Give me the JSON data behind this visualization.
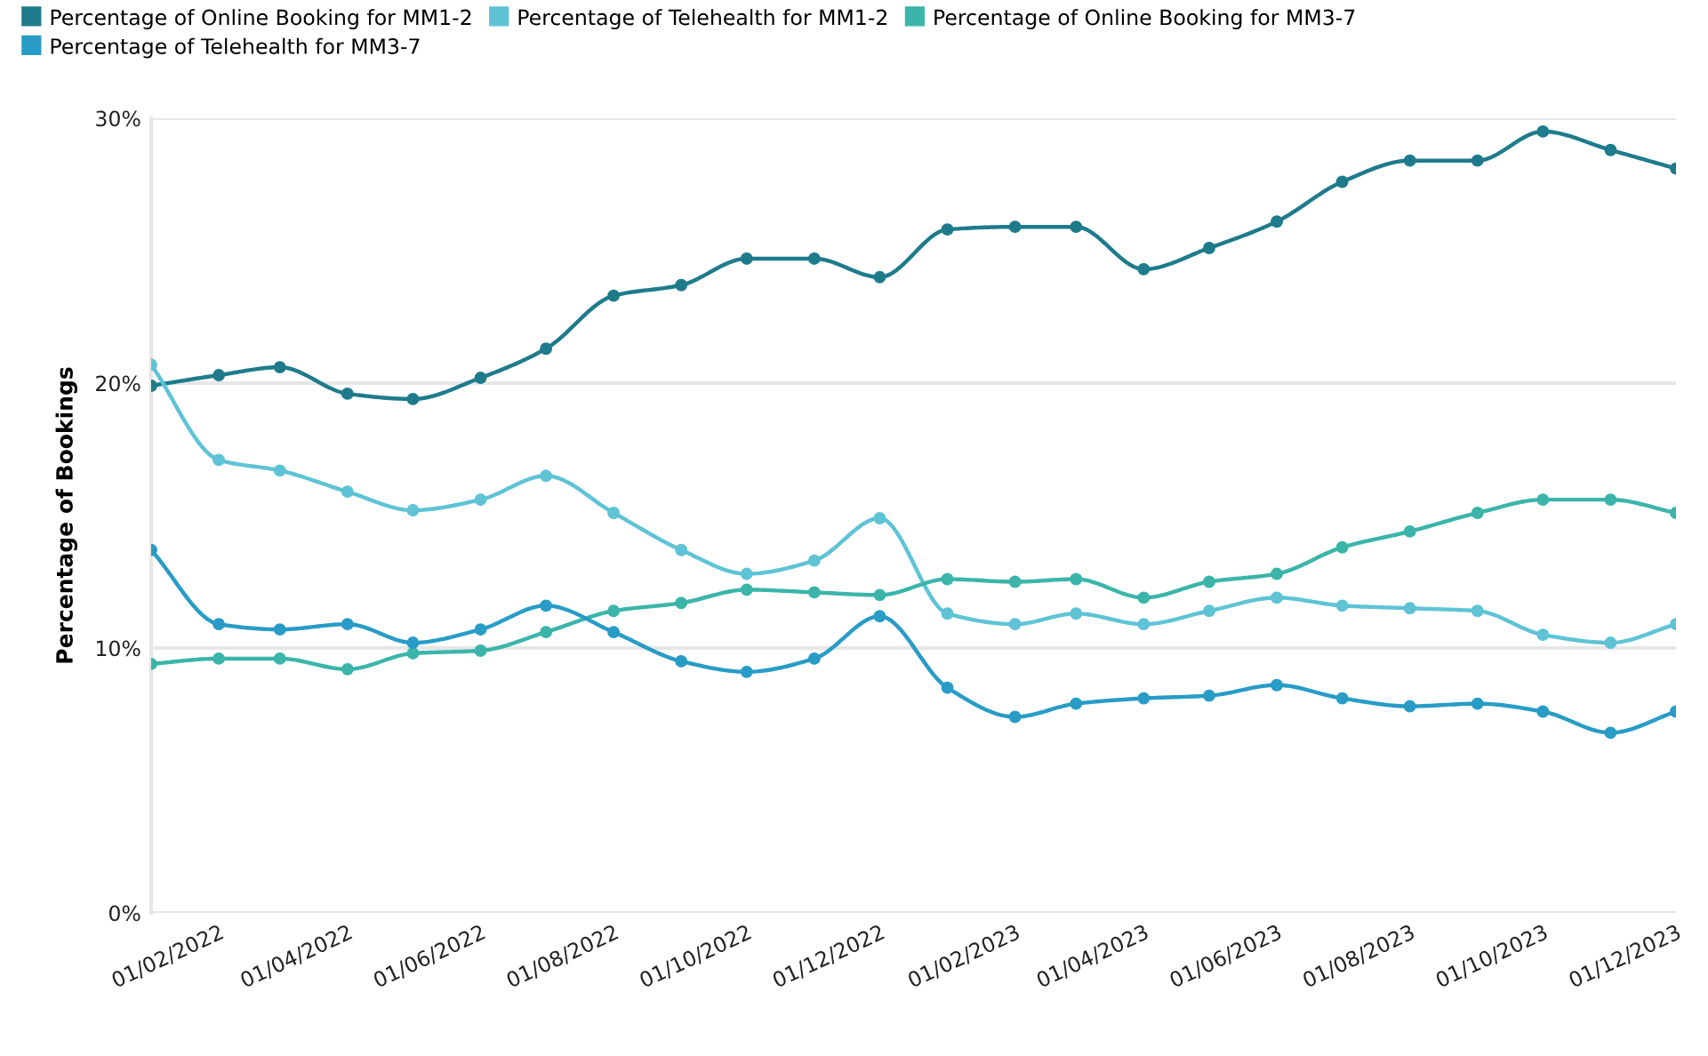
{
  "chart_data": {
    "type": "line",
    "ylabel": "Percentage of Bookings",
    "x": [
      "2022-01-01",
      "2022-02-01",
      "2022-03-01",
      "2022-04-01",
      "2022-05-01",
      "2022-06-01",
      "2022-07-01",
      "2022-08-01",
      "2022-09-01",
      "2022-10-01",
      "2022-11-01",
      "2022-12-01",
      "2023-01-01",
      "2023-02-01",
      "2023-03-01",
      "2023-04-01",
      "2023-05-01",
      "2023-06-01",
      "2023-07-01",
      "2023-08-01",
      "2023-09-01",
      "2023-10-01",
      "2023-11-01",
      "2023-12-01"
    ],
    "series": [
      {
        "name": "Percentage of Online Booking for MM1-2",
        "color": "#1e7b8c",
        "values": [
          19.9,
          20.3,
          20.6,
          19.6,
          19.4,
          20.2,
          21.3,
          23.3,
          23.7,
          24.7,
          24.7,
          24.0,
          25.8,
          25.9,
          25.9,
          24.3,
          25.1,
          26.1,
          27.6,
          28.4,
          28.4,
          29.5,
          28.8,
          28.1
        ]
      },
      {
        "name": "Percentage of Telehealth for MM1-2",
        "color": "#5fc3d6",
        "values": [
          20.7,
          17.1,
          16.7,
          15.9,
          15.2,
          15.6,
          16.5,
          15.1,
          13.7,
          12.8,
          13.3,
          14.9,
          11.3,
          10.9,
          11.3,
          10.9,
          11.4,
          11.9,
          11.6,
          11.5,
          11.4,
          10.5,
          10.2,
          10.9
        ]
      },
      {
        "name": "Percentage of Online Booking for MM3-7",
        "color": "#3bb5aa",
        "values": [
          9.4,
          9.6,
          9.6,
          9.2,
          9.8,
          9.9,
          10.6,
          11.4,
          11.7,
          12.2,
          12.1,
          12.0,
          12.6,
          12.5,
          12.6,
          11.9,
          12.5,
          12.8,
          13.8,
          14.4,
          15.1,
          15.6,
          15.6,
          15.1
        ]
      },
      {
        "name": "Percentage of Telehealth for MM3-7",
        "color": "#289cc6",
        "values": [
          13.7,
          10.9,
          10.7,
          10.9,
          10.2,
          10.7,
          11.6,
          10.6,
          9.5,
          9.1,
          9.6,
          11.2,
          8.5,
          7.4,
          7.9,
          8.1,
          8.2,
          8.6,
          8.1,
          7.8,
          7.9,
          7.6,
          6.8,
          7.6
        ]
      }
    ],
    "xlim": [
      "2022-01-01",
      "2023-12-01"
    ],
    "xticks": [
      {
        "value": "2022-02-01",
        "label": "01/02/2022"
      },
      {
        "value": "2022-04-01",
        "label": "01/04/2022"
      },
      {
        "value": "2022-06-01",
        "label": "01/06/2022"
      },
      {
        "value": "2022-08-01",
        "label": "01/08/2022"
      },
      {
        "value": "2022-10-01",
        "label": "01/10/2022"
      },
      {
        "value": "2022-12-01",
        "label": "01/12/2022"
      },
      {
        "value": "2023-02-01",
        "label": "01/02/2023"
      },
      {
        "value": "2023-04-01",
        "label": "01/04/2023"
      },
      {
        "value": "2023-06-01",
        "label": "01/06/2023"
      },
      {
        "value": "2023-08-01",
        "label": "01/08/2023"
      },
      {
        "value": "2023-10-01",
        "label": "01/10/2023"
      },
      {
        "value": "2023-12-01",
        "label": "01/12/2023"
      }
    ],
    "ylim": [
      0,
      30
    ],
    "yticks": [
      {
        "value": 0,
        "label": "0%"
      },
      {
        "value": 10,
        "label": "10%"
      },
      {
        "value": 20,
        "label": "20%"
      },
      {
        "value": 30,
        "label": "30%"
      }
    ],
    "grid": "y",
    "legend": "top left",
    "marker": "circle",
    "line_style": "solid"
  }
}
